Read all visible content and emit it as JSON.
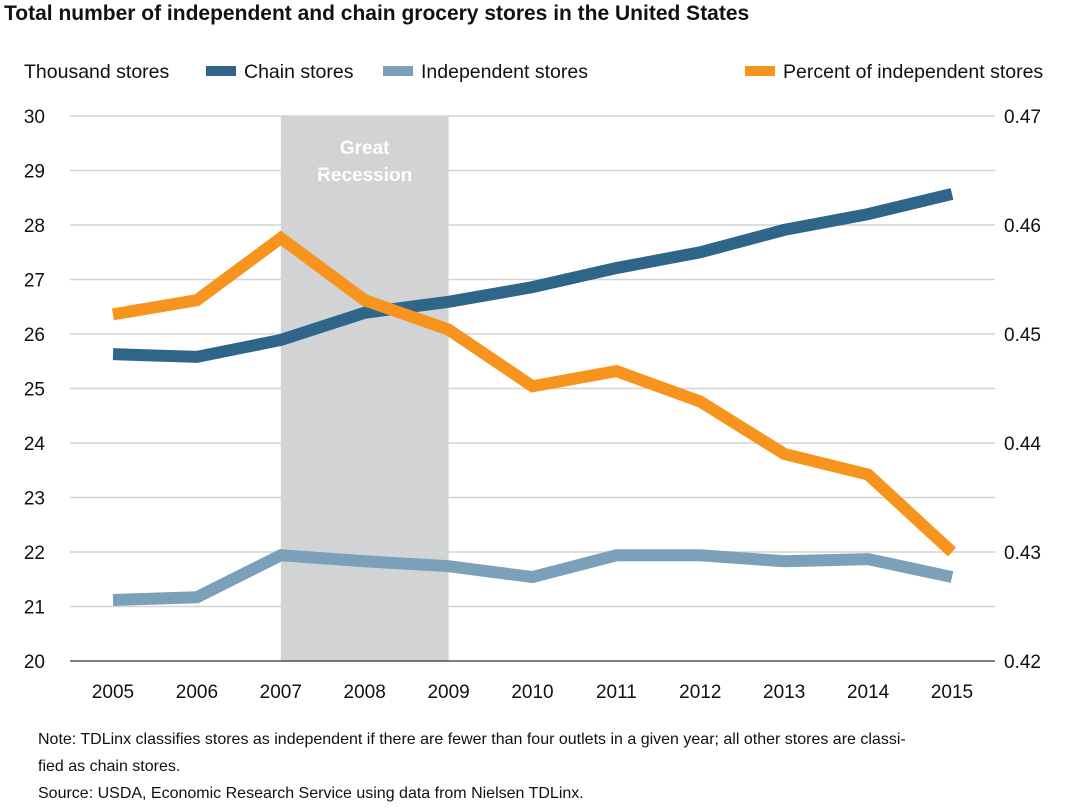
{
  "chart_data": {
    "type": "line",
    "title": "Total number of independent and chain grocery stores in the United States",
    "ylabel": "Thousand stores",
    "x": [
      2005,
      2006,
      2007,
      2008,
      2009,
      2010,
      2011,
      2012,
      2013,
      2014,
      2015
    ],
    "ylim": [
      20,
      30
    ],
    "y_ticks": [
      20,
      21,
      22,
      23,
      24,
      25,
      26,
      27,
      28,
      29,
      30
    ],
    "y2lim": [
      0.42,
      0.47
    ],
    "y2_ticks": [
      "0.42",
      "0.43",
      "0.44",
      "0.45",
      "0.46",
      "0.47"
    ],
    "grid": true,
    "legend_placement": "top",
    "series": [
      {
        "name": "Chain stores",
        "axis": "left",
        "color": "#2e6589",
        "values": [
          25.63,
          25.58,
          25.89,
          26.39,
          26.59,
          26.86,
          27.21,
          27.5,
          27.91,
          28.2,
          28.57
        ]
      },
      {
        "name": "Independent stores",
        "axis": "left",
        "color": "#7ba0b9",
        "values": [
          21.12,
          21.17,
          21.94,
          21.83,
          21.74,
          21.54,
          21.94,
          21.94,
          21.83,
          21.87,
          21.54
        ]
      },
      {
        "name": "Percent of independent stores",
        "axis": "right",
        "color": "#f7941d",
        "values": [
          0.4518,
          0.4531,
          0.4588,
          0.4531,
          0.4504,
          0.4452,
          0.4466,
          0.4438,
          0.439,
          0.4371,
          0.43
        ]
      }
    ],
    "annotations": [
      {
        "text": [
          "Great",
          "Recession"
        ],
        "x_start": 2007,
        "x_end": 2009,
        "color": "#d1d3d4"
      }
    ]
  },
  "notes": {
    "line1": "Note: TDLinx classifies stores as independent if there are fewer than four outlets in a given year; all other stores are classi-",
    "line2": "fied as chain stores.",
    "line3": "Source: USDA, Economic Research Service using data from Nielsen TDLinx."
  }
}
